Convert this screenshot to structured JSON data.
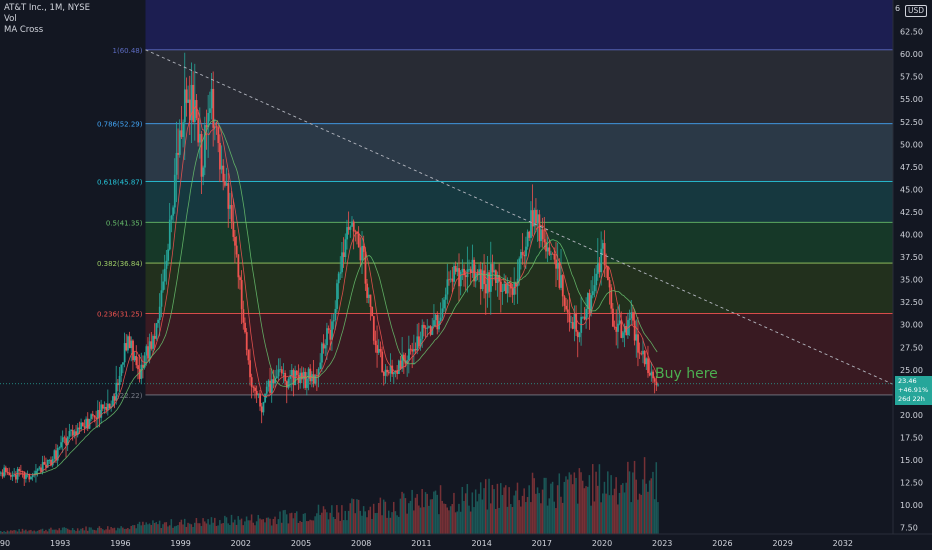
{
  "legend": {
    "symbol_line": "AT&T Inc., 1M, NYSE",
    "vol_label": "Vol",
    "ma_label": "MA Cross"
  },
  "currency": "USD",
  "top_partial_label": "6",
  "annotation": "Buy here",
  "price_tag": {
    "price": "23.46",
    "change": "+46.91%",
    "countdown": "26d 22h"
  },
  "colors": {
    "background": "#131722",
    "up": "#26a69a",
    "down": "#ef5350",
    "text": "#d1d4dc",
    "annotation": "#4caf50"
  },
  "chart_data": {
    "type": "candlestick",
    "title": "AT&T Inc., 1M, NYSE",
    "x_tick_labels": [
      "90",
      "1993",
      "1996",
      "1999",
      "2002",
      "2005",
      "2008",
      "2011",
      "2014",
      "2017",
      "2020",
      "2023",
      "2026",
      "2029",
      "2032"
    ],
    "x_range": [
      1990.0,
      2034.5
    ],
    "y_tick_labels": [
      "7.50",
      "10.00",
      "12.50",
      "15.00",
      "17.50",
      "20.00",
      "22.50",
      "25.00",
      "27.50",
      "30.00",
      "32.50",
      "35.00",
      "37.50",
      "40.00",
      "42.50",
      "45.00",
      "47.50",
      "50.00",
      "52.50",
      "55.00",
      "57.50",
      "60.00",
      "62.50"
    ],
    "y_range": [
      6.8,
      66.0
    ],
    "fibonacci": {
      "start_year": 1997.25,
      "levels": [
        {
          "ratio": "1",
          "label": "1(60.48)",
          "price": 60.48,
          "color": "#5c6bc0",
          "fill": "rgba(120,120,120,0.22)"
        },
        {
          "ratio": "0.786",
          "label": "0.786(52.29)",
          "price": 52.29,
          "color": "#42a5f5",
          "fill": "rgba(90,120,140,0.35)"
        },
        {
          "ratio": "0.618",
          "label": "0.618(45.87)",
          "price": 45.87,
          "color": "#26c6da",
          "fill": "rgba(30,110,110,0.38)"
        },
        {
          "ratio": "0.5",
          "label": "0.5(41.35)",
          "price": 41.35,
          "color": "#66bb6a",
          "fill": "rgba(30,110,50,0.38)"
        },
        {
          "ratio": "0.382",
          "label": "0.382(36.84)",
          "price": 36.84,
          "color": "#9ccc65",
          "fill": "rgba(60,90,20,0.38)"
        },
        {
          "ratio": "0.236",
          "label": "0.236(31.25)",
          "price": 31.25,
          "color": "#ef5350",
          "fill": "rgba(110,30,35,0.42)"
        },
        {
          "ratio": "0",
          "label": "0(22.22)",
          "price": 22.22,
          "color": "#787b86",
          "fill": ""
        }
      ],
      "above_fill": "rgba(40,40,140,0.45)"
    },
    "trendline": {
      "x": [
        1997.25,
        2034.5
      ],
      "y": [
        60.48,
        23.4
      ],
      "style": "dashed"
    },
    "current_price": 23.46,
    "anchors": [
      [
        1990.0,
        13.5
      ],
      [
        1991.5,
        13.2
      ],
      [
        1992.5,
        15.0
      ],
      [
        1993.5,
        18.2
      ],
      [
        1994.5,
        19.5
      ],
      [
        1995.5,
        21.0
      ],
      [
        1996.3,
        28.0
      ],
      [
        1996.9,
        24.5
      ],
      [
        1997.8,
        30.0
      ],
      [
        1998.5,
        42.0
      ],
      [
        1999.0,
        52.0
      ],
      [
        1999.5,
        55.0
      ],
      [
        2000.0,
        48.0
      ],
      [
        2000.5,
        55.0
      ],
      [
        2001.0,
        46.0
      ],
      [
        2001.5,
        42.0
      ],
      [
        2002.0,
        32.0
      ],
      [
        2002.5,
        23.0
      ],
      [
        2003.0,
        21.0
      ],
      [
        2003.5,
        24.0
      ],
      [
        2004.5,
        24.5
      ],
      [
        2005.5,
        24.0
      ],
      [
        2006.5,
        30.0
      ],
      [
        2007.0,
        38.0
      ],
      [
        2007.5,
        41.0
      ],
      [
        2008.0,
        38.0
      ],
      [
        2008.5,
        30.0
      ],
      [
        2009.0,
        25.0
      ],
      [
        2009.5,
        24.5
      ],
      [
        2010.5,
        27.0
      ],
      [
        2011.0,
        29.0
      ],
      [
        2011.8,
        30.5
      ],
      [
        2012.5,
        36.0
      ],
      [
        2013.0,
        35.5
      ],
      [
        2013.5,
        36.0
      ],
      [
        2014.5,
        35.0
      ],
      [
        2015.5,
        34.0
      ],
      [
        2016.0,
        38.0
      ],
      [
        2016.5,
        43.0
      ],
      [
        2017.0,
        40.0
      ],
      [
        2017.5,
        37.5
      ],
      [
        2018.0,
        33.0
      ],
      [
        2018.7,
        29.0
      ],
      [
        2019.5,
        33.0
      ],
      [
        2020.0,
        39.0
      ],
      [
        2020.5,
        30.0
      ],
      [
        2021.0,
        29.0
      ],
      [
        2021.4,
        31.0
      ],
      [
        2021.9,
        27.0
      ],
      [
        2022.3,
        25.5
      ],
      [
        2022.7,
        23.5
      ]
    ]
  }
}
